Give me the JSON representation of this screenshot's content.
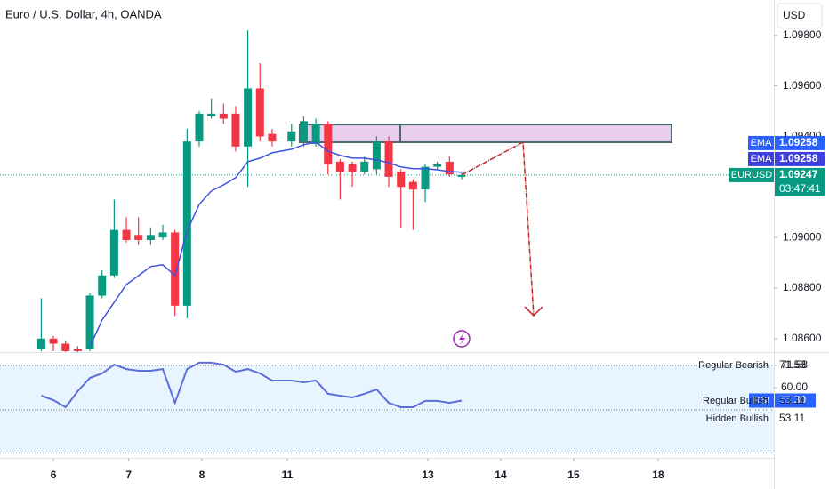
{
  "chart_data": [
    {
      "type": "candlestick",
      "title": "Euro / U.S. Dollar, 4h, OANDA",
      "currency": "USD",
      "up_color": "#089981",
      "down_color": "#f23645",
      "grid": false,
      "xlim": [
        -4.4,
        59.3
      ],
      "ylim": [
        1.0855,
        1.0994
      ],
      "yticks": [
        {
          "value": 1.086,
          "label": "1.08600"
        },
        {
          "value": 1.088,
          "label": "1.08800"
        },
        {
          "value": 1.09,
          "label": "1.09000"
        },
        {
          "value": 1.094,
          "label": "1.09400"
        },
        {
          "value": 1.096,
          "label": "1.09600"
        },
        {
          "value": 1.098,
          "label": "1.09800"
        }
      ],
      "x": [
        -1,
        0,
        1,
        2,
        3,
        4,
        5,
        6,
        7,
        8,
        9,
        10,
        11,
        12,
        13,
        14,
        15,
        16,
        17,
        18,
        19.6,
        20.6,
        21.6,
        22.6,
        23.6,
        24.6,
        25.6,
        26.6,
        27.6,
        28.6,
        29.6,
        30.6,
        31.6,
        32.6,
        33.6
      ],
      "open": [
        1.0856,
        1.086,
        1.0858,
        1.0856,
        1.0856,
        1.0877,
        1.0885,
        1.0903,
        1.0901,
        1.0899,
        1.09,
        1.0902,
        1.0873,
        1.0938,
        1.0948,
        1.0949,
        1.0949,
        1.0936,
        1.0959,
        1.0941,
        1.0938,
        1.0938,
        1.0937,
        1.0945,
        1.093,
        1.0929,
        1.0926,
        1.0927,
        1.0938,
        1.0926,
        1.0922,
        1.0919,
        1.0928,
        1.093,
        1.0924
      ],
      "high": [
        1.0876,
        1.0861,
        1.0859,
        1.0857,
        1.0878,
        1.0887,
        1.0915,
        1.0908,
        1.0908,
        1.0904,
        1.0905,
        1.0903,
        1.0943,
        1.095,
        1.0955,
        1.0953,
        1.0952,
        1.0982,
        1.0969,
        1.0943,
        1.0945,
        1.0948,
        1.0947,
        1.0946,
        1.0931,
        1.093,
        1.0932,
        1.094,
        1.094,
        1.0927,
        1.0923,
        1.0929,
        1.093,
        1.0932,
        1.0926
      ],
      "low": [
        1.0855,
        1.0855,
        1.0854,
        1.0854,
        1.0855,
        1.0876,
        1.0884,
        1.0898,
        1.0897,
        1.0897,
        1.0899,
        1.0869,
        1.0868,
        1.0936,
        1.0947,
        1.0945,
        1.0934,
        1.092,
        1.0938,
        1.0936,
        1.0936,
        1.0936,
        1.0936,
        1.0925,
        1.0915,
        1.092,
        1.0925,
        1.0925,
        1.092,
        1.0904,
        1.0903,
        1.0914,
        1.0927,
        1.0924,
        1.0923
      ],
      "close": [
        1.086,
        1.0858,
        1.0855,
        1.0855,
        1.0877,
        1.0885,
        1.0903,
        1.0899,
        1.0899,
        1.0901,
        1.0902,
        1.0873,
        1.0938,
        1.0949,
        1.0949,
        1.0947,
        1.0936,
        1.0959,
        1.094,
        1.0938,
        1.0942,
        1.0946,
        1.0945,
        1.0929,
        1.0926,
        1.0926,
        1.093,
        1.0938,
        1.0924,
        1.092,
        1.0919,
        1.0928,
        1.0929,
        1.0925,
        1.09247
      ],
      "ema": {
        "color": "#3f51e0",
        "values": [
          null,
          null,
          null,
          null,
          1.08568,
          1.08673,
          1.08744,
          1.08814,
          1.08849,
          1.08885,
          1.08892,
          1.08849,
          1.09025,
          1.09131,
          1.09184,
          1.09208,
          1.09237,
          1.093,
          1.09314,
          1.09335,
          1.09349,
          1.09367,
          1.09377,
          1.09342,
          1.09325,
          1.09314,
          1.09314,
          1.09307,
          1.09296,
          1.09279,
          1.09272,
          1.09272,
          1.09268,
          1.09261,
          1.09258
        ]
      },
      "zone": {
        "x": [
          20.27,
          50.88
        ],
        "y": [
          1.09447,
          1.09377
        ],
        "divider": 28.55,
        "color": "#e1bee7",
        "border": "#4a6b6b"
      },
      "arrow": {
        "x": [
          33.6,
          38.65,
          39.53
        ],
        "y": [
          1.09247,
          1.09377,
          1.08691
        ],
        "color": "#c62828"
      },
      "price_labels": [
        {
          "label": "EMA",
          "value": 1.09258,
          "color": "#2962ff"
        },
        {
          "label": "EMA",
          "value": 1.09258,
          "color": "#3f3fdb"
        },
        {
          "label": "EURUSD",
          "value": 1.09247,
          "countdown": "03:47:41",
          "color": "#089981"
        }
      ]
    },
    {
      "type": "line",
      "name": "RSI",
      "color": "#5b6fd8",
      "xlim": [
        -4.4,
        59.3
      ],
      "ylim": [
        25.75,
        78.06
      ],
      "xticks": [
        {
          "value": 0,
          "label": "6"
        },
        {
          "value": 6.2,
          "label": "7"
        },
        {
          "value": 12.22,
          "label": "8"
        },
        {
          "value": 19.25,
          "label": "11"
        },
        {
          "value": 30.82,
          "label": "13"
        },
        {
          "value": 36.82,
          "label": "14"
        },
        {
          "value": 42.82,
          "label": "15"
        },
        {
          "value": 49.78,
          "label": "18"
        }
      ],
      "yticks": [
        71.58,
        {
          "value": 60,
          "label": "60.00"
        }
      ],
      "current": {
        "value": 53.3,
        "label": "53.30"
      },
      "band": [
        25.9,
        71.58
      ],
      "levels": [
        71.58,
        48.43,
        25.9
      ],
      "annotations": [
        {
          "text": "Regular Bearish",
          "value": 71.58
        },
        {
          "text": "Regular Bullish",
          "value": 53.11
        },
        {
          "text": "Hidden Bullish",
          "value": 53.11
        }
      ],
      "x": [
        -1,
        0,
        1,
        2,
        3,
        4,
        5,
        6,
        7,
        8,
        9,
        10,
        11,
        12,
        13,
        14,
        15,
        16,
        17,
        18,
        19.6,
        20.6,
        21.6,
        22.6,
        23.6,
        24.6,
        25.6,
        26.6,
        27.6,
        28.6,
        29.6,
        30.6,
        31.6,
        32.6,
        33.6
      ],
      "values": [
        55.84,
        53.52,
        49.82,
        58.15,
        65.1,
        67.4,
        72.0,
        69.7,
        68.8,
        68.8,
        69.7,
        52.1,
        69.7,
        73.0,
        73.0,
        72.0,
        68.3,
        69.7,
        67.4,
        63.7,
        63.7,
        62.8,
        63.7,
        56.8,
        55.8,
        54.9,
        56.8,
        59.1,
        52.1,
        49.8,
        49.8,
        53.1,
        53.1,
        52.1,
        53.3
      ]
    }
  ]
}
